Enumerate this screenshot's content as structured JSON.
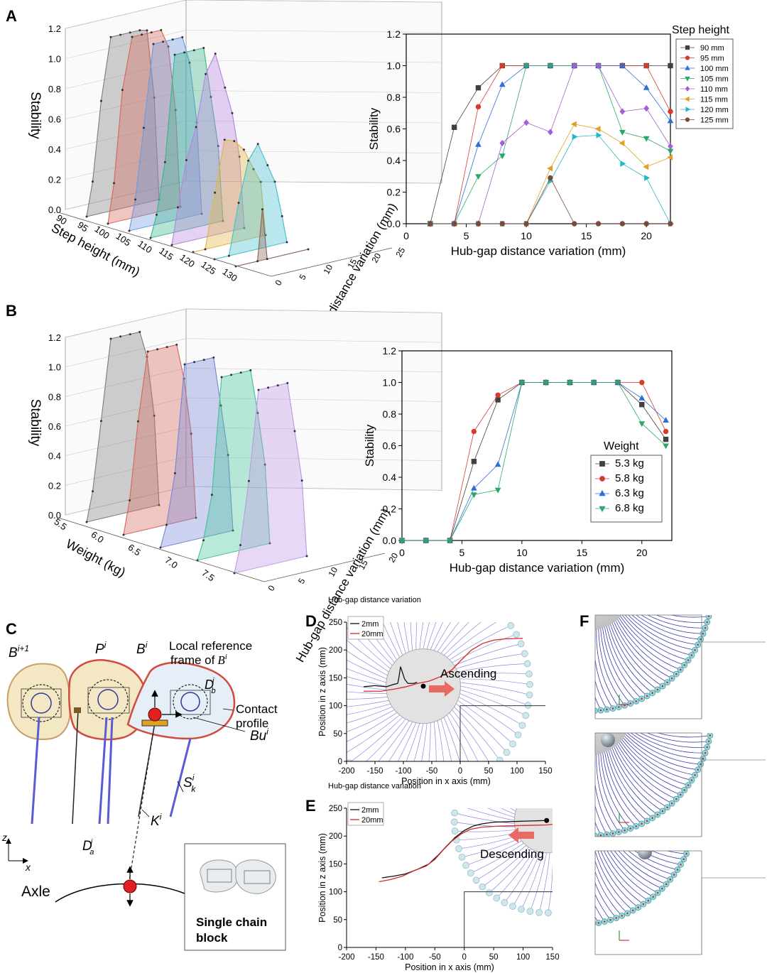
{
  "panel_labels": {
    "A": "A",
    "B": "B",
    "C": "C",
    "D": "D",
    "E": "E",
    "F": "F"
  },
  "chart_data": [
    {
      "id": "A3d",
      "type": "area",
      "ylabel": "Stability",
      "xlabel": "Step height (mm)",
      "zlabel": "Hub-gap distance variation (mm)",
      "categories": [
        "90",
        "95",
        "100",
        "105",
        "110",
        "115",
        "120",
        "125",
        "130"
      ],
      "ticks": [
        "0.0",
        "0.2",
        "0.4",
        "0.6",
        "0.8",
        "1.0",
        "1.2"
      ],
      "depth_ticks": [
        "0",
        "5",
        "10",
        "15",
        "20",
        "25"
      ],
      "ylim": [
        0,
        1.2
      ]
    },
    {
      "id": "A2d",
      "type": "line",
      "ylabel": "Stability",
      "xlabel": "Hub-gap distance variation (mm)",
      "xlim": [
        0,
        22
      ],
      "ylim": [
        0,
        1.2
      ],
      "xticks": [
        "0",
        "5",
        "10",
        "15",
        "20"
      ],
      "yticks": [
        "0.0",
        "0.2",
        "0.4",
        "0.6",
        "0.8",
        "1.0",
        "1.2"
      ],
      "legend_title": "Step height",
      "x": [
        2,
        4,
        6,
        8,
        10,
        12,
        14,
        16,
        18,
        20,
        22
      ],
      "series": [
        {
          "name": "90 mm",
          "color": "#404040",
          "marker": "square",
          "values": [
            0,
            0.61,
            0.86,
            1,
            1,
            1,
            1,
            1,
            1,
            1,
            1
          ]
        },
        {
          "name": "95 mm",
          "color": "#d63a2f",
          "marker": "circle",
          "values": [
            0,
            0,
            0.74,
            1,
            1,
            1,
            1,
            1,
            1,
            1,
            0.71
          ]
        },
        {
          "name": "100 mm",
          "color": "#2f6fd6",
          "marker": "up",
          "values": [
            0,
            0,
            0.5,
            0.88,
            1,
            1,
            1,
            1,
            1,
            0.86,
            0.65
          ]
        },
        {
          "name": "105 mm",
          "color": "#2aa86a",
          "marker": "down",
          "values": [
            0,
            0,
            0.3,
            0.43,
            1,
            1,
            1,
            1,
            0.58,
            0.54,
            0.46
          ]
        },
        {
          "name": "110 mm",
          "color": "#a35fd6",
          "marker": "diamond",
          "values": [
            0,
            0,
            0,
            0.51,
            0.64,
            0.58,
            1,
            1,
            0.71,
            0.73,
            0.49
          ]
        },
        {
          "name": "115 mm",
          "color": "#e0a020",
          "marker": "left",
          "values": [
            0,
            0,
            0,
            0,
            0,
            0.35,
            0.63,
            0.6,
            0.51,
            0.36,
            0.42
          ]
        },
        {
          "name": "120 mm",
          "color": "#23b8c8",
          "marker": "right",
          "values": [
            0,
            0,
            0,
            0,
            0,
            0.27,
            0.55,
            0.56,
            0.38,
            0.29,
            0
          ]
        },
        {
          "name": "125 mm",
          "color": "#7a4a3a",
          "marker": "hex",
          "values": [
            0,
            0,
            0,
            0,
            0,
            0.29,
            0,
            0,
            0,
            0,
            0
          ]
        }
      ]
    },
    {
      "id": "B3d",
      "type": "area",
      "ylabel": "Stability",
      "xlabel": "Weight (kg)",
      "zlabel": "Hub-gap distance variation (mm)",
      "categories": [
        "5.5",
        "6.0",
        "6.5",
        "7.0",
        "7.5"
      ],
      "ticks": [
        "0.0",
        "0.2",
        "0.4",
        "0.6",
        "0.8",
        "1.0",
        "1.2"
      ],
      "depth_ticks": [
        "0",
        "5",
        "10",
        "15",
        "20"
      ],
      "ylim": [
        0,
        1.2
      ]
    },
    {
      "id": "B2d",
      "type": "line",
      "ylabel": "Stability",
      "xlabel": "Hub-gap distance variation (mm)",
      "xlim": [
        0,
        22.5
      ],
      "ylim": [
        0,
        1.2
      ],
      "xticks": [
        "0",
        "5",
        "10",
        "15",
        "20"
      ],
      "yticks": [
        "0.0",
        "0.2",
        "0.4",
        "0.6",
        "0.8",
        "1.0",
        "1.2"
      ],
      "legend_title": "Weight",
      "x": [
        0,
        2,
        4,
        6,
        8,
        10,
        12,
        14,
        16,
        18,
        20,
        22
      ],
      "series": [
        {
          "name": "5.3 kg",
          "color": "#404040",
          "marker": "square",
          "values": [
            0,
            0,
            0,
            0.5,
            0.89,
            1,
            1,
            1,
            1,
            1,
            0.86,
            0.64
          ]
        },
        {
          "name": "5.8 kg",
          "color": "#d63a2f",
          "marker": "circle",
          "values": [
            0,
            0,
            0,
            0.69,
            0.92,
            1,
            1,
            1,
            1,
            1,
            1,
            0.69
          ]
        },
        {
          "name": "6.3 kg",
          "color": "#2f6fd6",
          "marker": "up",
          "values": [
            0,
            0,
            0,
            0.33,
            0.48,
            1,
            1,
            1,
            1,
            1,
            0.9,
            0.76
          ]
        },
        {
          "name": "6.8 kg",
          "color": "#2aa86a",
          "marker": "down",
          "values": [
            0,
            0,
            0,
            0.29,
            0.32,
            1,
            1,
            1,
            1,
            1,
            0.74,
            0.6
          ]
        }
      ]
    },
    {
      "id": "D",
      "type": "line",
      "ylabel": "Position in z axis (mm)",
      "xlabel": "Position in x axis (mm)",
      "xlim": [
        -200,
        150
      ],
      "ylim": [
        0,
        250
      ],
      "xticks": [
        "-200",
        "-150",
        "-100",
        "-50",
        "0",
        "50",
        "100",
        "150"
      ],
      "yticks": [
        "0",
        "50",
        "100",
        "150",
        "200",
        "250"
      ],
      "legend_title": "Hub-gap distance variation",
      "annotation": "Ascending",
      "series": [
        {
          "name": "2mm",
          "color": "#111111",
          "x": [
            -170,
            -150,
            -130,
            -118,
            -110,
            -108,
            -105,
            -98,
            -92,
            -82,
            -76
          ],
          "values": [
            134,
            136,
            134,
            138,
            140,
            150,
            170,
            148,
            140,
            140,
            142
          ]
        },
        {
          "name": "20mm",
          "color": "#d42a2a",
          "x": [
            -170,
            -140,
            -115,
            -95,
            -75,
            -55,
            -35,
            -15,
            0,
            20,
            40,
            60,
            80,
            110
          ],
          "values": [
            126,
            126,
            130,
            134,
            140,
            144,
            152,
            164,
            180,
            200,
            212,
            218,
            220,
            221
          ]
        }
      ]
    },
    {
      "id": "E",
      "type": "line",
      "ylabel": "Position in z axis (mm)",
      "xlabel": "Position in x axis (mm)",
      "xlim": [
        -200,
        150
      ],
      "ylim": [
        0,
        250
      ],
      "xticks": [
        "-200",
        "-150",
        "-100",
        "-50",
        "0",
        "50",
        "100",
        "150"
      ],
      "yticks": [
        "0",
        "50",
        "100",
        "150",
        "200",
        "250"
      ],
      "legend_title": "Hub-gap distance variation",
      "annotation": "Descending",
      "series": [
        {
          "name": "2mm",
          "color": "#111111",
          "x": [
            -140,
            -120,
            -100,
            -80,
            -60,
            -45,
            -30,
            -15,
            0,
            15,
            30,
            50,
            80,
            110,
            140
          ],
          "values": [
            125,
            128,
            132,
            140,
            150,
            165,
            182,
            198,
            210,
            218,
            222,
            225,
            226,
            227,
            228
          ]
        },
        {
          "name": "20mm",
          "color": "#d42a2a",
          "x": [
            -145,
            -125,
            -105,
            -85,
            -65,
            -50,
            -35,
            -20,
            -5,
            10,
            30,
            60,
            100,
            140,
            150
          ],
          "values": [
            118,
            122,
            128,
            138,
            146,
            158,
            176,
            192,
            204,
            212,
            216,
            218,
            219,
            220,
            221
          ]
        }
      ]
    }
  ],
  "panelC": {
    "labels": {
      "b_next": "B",
      "b_next_sup": "i+1",
      "p": "P",
      "p_sup": "i",
      "b": "B",
      "b_sup": "i",
      "local_ref": "Local reference",
      "local_ref2": "frame of",
      "local_ref_b": "B",
      "local_ref_sup": "i",
      "db": "D",
      "db_sub": "b",
      "db_sup": "i",
      "contact1": "Contact",
      "contact2": "profile",
      "bu": "Bu",
      "bu_sup": "i",
      "s": "S",
      "s_sub": "k",
      "s_sup": "i",
      "k": "K",
      "k_sup": "i",
      "da": "D",
      "da_sub": "a",
      "da_sup": "i",
      "axis_z": "z",
      "axis_x": "x",
      "axle": "Axle",
      "single1": "Single chain",
      "single2": "block"
    }
  }
}
